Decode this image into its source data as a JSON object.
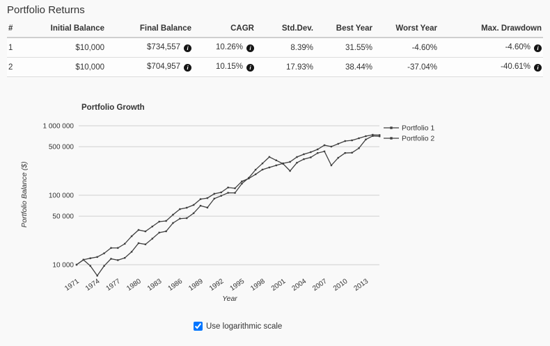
{
  "page": {
    "title": "Portfolio Returns",
    "background": "#f9f9f9"
  },
  "icons": {
    "info_glyph": "i"
  },
  "colors": {
    "line": "#3f3f3f",
    "grid": "#d0d0d0",
    "text": "#333333"
  },
  "table": {
    "columns": [
      "#",
      "Initial Balance",
      "Final Balance",
      "CAGR",
      "Std.Dev.",
      "Best Year",
      "Worst Year",
      "Max. Drawdown"
    ],
    "rows": [
      {
        "num": "1",
        "initial": "$10,000",
        "final": "$734,557",
        "cagr": "10.26%",
        "stdev": "8.39%",
        "best": "31.55%",
        "worst": "-4.60%",
        "maxdd": "-4.60%"
      },
      {
        "num": "2",
        "initial": "$10,000",
        "final": "$704,957",
        "cagr": "10.15%",
        "stdev": "17.93%",
        "best": "38.44%",
        "worst": "-37.04%",
        "maxdd": "-40.61%"
      }
    ]
  },
  "chart_data": {
    "type": "line",
    "title": "Portfolio Growth",
    "xlabel": "Year",
    "ylabel": "Portfolio Balance ($)",
    "y_scale": "log",
    "legend_position": "right-top",
    "x_range": [
      1971,
      2015
    ],
    "ylim": [
      6500,
      1300000
    ],
    "x_ticks": [
      1971,
      1974,
      1977,
      1980,
      1983,
      1986,
      1989,
      1992,
      1995,
      1998,
      2001,
      2004,
      2007,
      2010,
      2013
    ],
    "y_ticks": [
      1000000,
      500000,
      100000,
      50000,
      10000
    ],
    "y_tick_labels": [
      "1 000 000",
      "500 000",
      "100 000",
      "50 000",
      "10 000"
    ],
    "x": [
      1971,
      1972,
      1973,
      1974,
      1975,
      1976,
      1977,
      1978,
      1979,
      1980,
      1981,
      1982,
      1983,
      1984,
      1985,
      1986,
      1987,
      1988,
      1989,
      1990,
      1991,
      1992,
      1993,
      1994,
      1995,
      1996,
      1997,
      1998,
      1999,
      2000,
      2001,
      2002,
      2003,
      2004,
      2005,
      2006,
      2007,
      2008,
      2009,
      2010,
      2011,
      2012,
      2013,
      2014,
      2015
    ],
    "series": [
      {
        "name": "Portfolio 1",
        "values": [
          10000,
          11800,
          12400,
          12900,
          14600,
          17400,
          17400,
          20000,
          25700,
          31600,
          30200,
          35500,
          41700,
          42700,
          52500,
          63100,
          66100,
          72400,
          88000,
          91000,
          105000,
          110000,
          129000,
          126000,
          158000,
          174000,
          200000,
          234000,
          251000,
          269000,
          288000,
          302000,
          355000,
          389000,
          417000,
          457000,
          525000,
          500900,
          550000,
          603000,
          617000,
          661000,
          708000,
          741000,
          734557
        ]
      },
      {
        "name": "Portfolio 2",
        "values": [
          10000,
          11762,
          9624,
          6948,
          9619,
          12165,
          11646,
          12518,
          15352,
          20394,
          19652,
          23724,
          28955,
          30267,
          39795,
          46015,
          46816,
          55056,
          70692,
          66380,
          89414,
          98087,
          108484,
          108267,
          147027,
          177902,
          233024,
          287225,
          355573,
          317988,
          283106,
          223766,
          293917,
          330716,
          350494,
          404855,
          427082,
          268890,
          346062,
          405202,
          409092,
          475570,
          634172,
          712999,
          704957
        ]
      }
    ]
  },
  "controls": {
    "log_scale_label": "Use logarithmic scale",
    "log_scale_checked": true
  }
}
